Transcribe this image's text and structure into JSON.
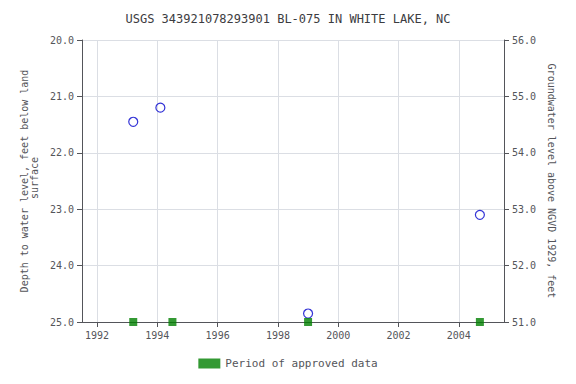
{
  "chart_data": {
    "type": "scatter",
    "title": "USGS 343921078293901 BL-075 IN WHITE LAKE, NC",
    "ylabel": "Depth to water level, feet below land\n surface",
    "y2label": "Groundwater level above NGVD 1929, feet",
    "series": [
      {
        "color": "#0000cc",
        "marker": "open circle",
        "x": [
          1993.2,
          1994.1,
          1999.0,
          2004.7
        ],
        "values": [
          21.45,
          21.2,
          24.85,
          23.1
        ]
      },
      {
        "name": "Period of approved data",
        "color": "#008000",
        "marker": "square",
        "x": [
          1993.2,
          1994.5,
          1999.0,
          2004.7
        ],
        "values": [
          25.0,
          25.0,
          25.0,
          25.0
        ]
      }
    ],
    "xlim": [
      1991.5,
      2005.5
    ],
    "xticks": [
      1992,
      1994,
      1996,
      1998,
      2000,
      2002,
      2004
    ],
    "ylim": [
      25.0,
      20.0
    ],
    "yticks": [
      {
        "value": 20.0,
        "label": "20.0"
      },
      {
        "value": 21.0,
        "label": "21.0"
      },
      {
        "value": 22.0,
        "label": "22.0"
      },
      {
        "value": 23.0,
        "label": "23.0"
      },
      {
        "value": 24.0,
        "label": "24.0"
      },
      {
        "value": 25.0,
        "label": "25.0"
      }
    ],
    "y2lim": [
      51.0,
      56.0
    ],
    "y2ticks": [
      {
        "value": 56.0,
        "label": "56.0"
      },
      {
        "value": 55.0,
        "label": "55.0"
      },
      {
        "value": 54.0,
        "label": "54.0"
      },
      {
        "value": 53.0,
        "label": "53.0"
      },
      {
        "value": 52.0,
        "label": "52.0"
      },
      {
        "value": 51.0,
        "label": "51.0"
      }
    ],
    "grid": true,
    "legend": "bottom"
  }
}
